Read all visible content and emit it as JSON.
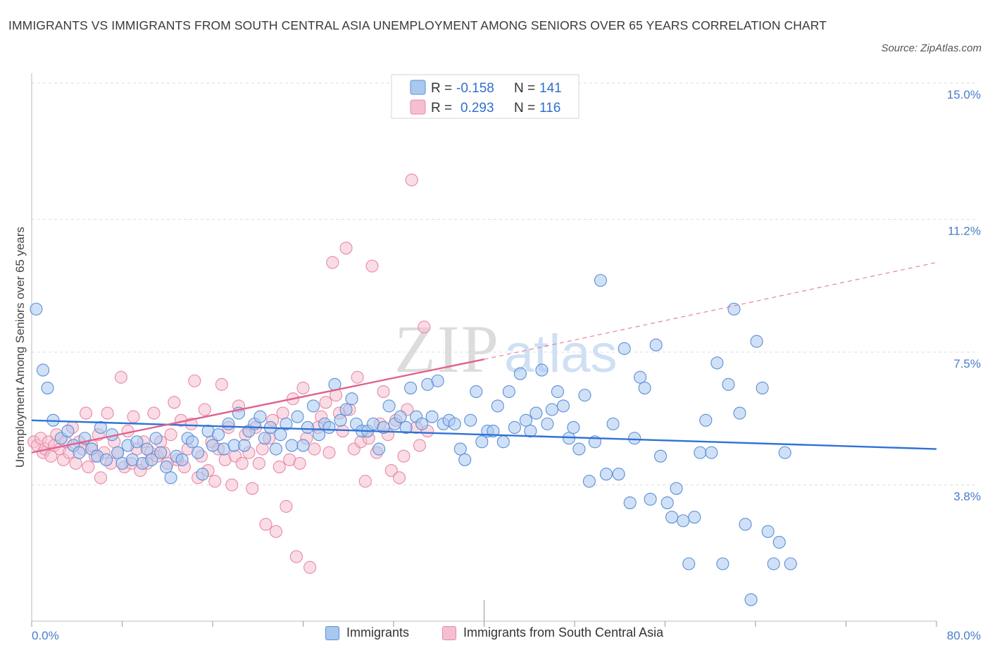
{
  "title": "IMMIGRANTS VS IMMIGRANTS FROM SOUTH CENTRAL ASIA UNEMPLOYMENT AMONG SENIORS OVER 65 YEARS CORRELATION CHART",
  "source": "Source: ZipAtlas.com",
  "watermark": {
    "zip": "ZIP",
    "atlas": "atlas"
  },
  "colors": {
    "blue_fill": "#a9c8f0",
    "blue_stroke": "#5b8fd6",
    "blue_line": "#2f72d4",
    "pink_fill": "#f6bfd0",
    "pink_stroke": "#e889a6",
    "pink_line": "#e0628e",
    "axis_text": "#4a7cc9",
    "grid": "#dddddd"
  },
  "legend": {
    "r_label": "R =",
    "n_label": "N =",
    "rows": [
      {
        "r": "-0.158",
        "n": "141"
      },
      {
        "r": "0.293",
        "n": "116"
      }
    ]
  },
  "bottom_legend": [
    "Immigrants",
    "Immigrants from South Central Asia"
  ],
  "chart_data": {
    "type": "scatter",
    "ylabel": "Unemployment Among Seniors over 65 years",
    "xlim": [
      0,
      80
    ],
    "ylim": [
      0,
      15
    ],
    "x_tick_labels": {
      "min": "0.0%",
      "max": "80.0%"
    },
    "y_ticks": [
      3.8,
      7.5,
      11.2,
      15.0
    ],
    "y_tick_labels": [
      "3.8%",
      "7.5%",
      "11.2%",
      "15.0%"
    ],
    "grid": true,
    "series": [
      {
        "name": "Immigrants",
        "color": "blue",
        "trend": {
          "x": [
            0,
            80
          ],
          "y": [
            5.6,
            4.8
          ],
          "style": "solid"
        },
        "points": [
          [
            0.4,
            8.7
          ],
          [
            1.0,
            7.0
          ],
          [
            1.4,
            6.5
          ],
          [
            1.9,
            5.6
          ],
          [
            2.6,
            5.1
          ],
          [
            3.2,
            5.3
          ],
          [
            3.7,
            4.9
          ],
          [
            4.2,
            4.7
          ],
          [
            4.7,
            5.1
          ],
          [
            5.3,
            4.8
          ],
          [
            5.8,
            4.6
          ],
          [
            6.1,
            5.4
          ],
          [
            6.6,
            4.5
          ],
          [
            7.1,
            5.2
          ],
          [
            7.6,
            4.7
          ],
          [
            8.0,
            4.4
          ],
          [
            8.5,
            4.9
          ],
          [
            8.9,
            4.5
          ],
          [
            9.3,
            5.0
          ],
          [
            9.8,
            4.4
          ],
          [
            10.2,
            4.8
          ],
          [
            10.6,
            4.5
          ],
          [
            11.0,
            5.1
          ],
          [
            11.4,
            4.7
          ],
          [
            11.9,
            4.3
          ],
          [
            12.3,
            4.0
          ],
          [
            12.8,
            4.6
          ],
          [
            13.3,
            4.5
          ],
          [
            13.8,
            5.1
          ],
          [
            14.2,
            5.0
          ],
          [
            14.7,
            4.7
          ],
          [
            15.1,
            4.1
          ],
          [
            15.6,
            5.3
          ],
          [
            16.0,
            4.9
          ],
          [
            16.5,
            5.2
          ],
          [
            17.0,
            4.8
          ],
          [
            17.4,
            5.5
          ],
          [
            17.9,
            4.9
          ],
          [
            18.3,
            5.8
          ],
          [
            18.8,
            4.9
          ],
          [
            19.2,
            5.3
          ],
          [
            19.7,
            5.5
          ],
          [
            20.2,
            5.7
          ],
          [
            20.6,
            5.1
          ],
          [
            21.1,
            5.4
          ],
          [
            21.6,
            4.8
          ],
          [
            22.0,
            5.2
          ],
          [
            22.5,
            5.5
          ],
          [
            23.0,
            4.9
          ],
          [
            23.5,
            5.7
          ],
          [
            24.0,
            4.9
          ],
          [
            24.4,
            5.4
          ],
          [
            24.9,
            6.0
          ],
          [
            25.4,
            5.2
          ],
          [
            25.9,
            5.5
          ],
          [
            26.3,
            5.4
          ],
          [
            26.8,
            6.6
          ],
          [
            27.3,
            5.6
          ],
          [
            27.8,
            5.9
          ],
          [
            28.3,
            6.2
          ],
          [
            28.7,
            5.5
          ],
          [
            29.2,
            5.3
          ],
          [
            29.7,
            5.3
          ],
          [
            30.2,
            5.5
          ],
          [
            30.7,
            4.8
          ],
          [
            31.1,
            5.4
          ],
          [
            31.6,
            6.0
          ],
          [
            32.1,
            5.5
          ],
          [
            32.6,
            5.7
          ],
          [
            33.1,
            5.4
          ],
          [
            33.5,
            6.5
          ],
          [
            34.0,
            5.7
          ],
          [
            34.5,
            5.5
          ],
          [
            35.0,
            6.6
          ],
          [
            35.4,
            5.7
          ],
          [
            35.9,
            6.7
          ],
          [
            36.4,
            5.5
          ],
          [
            36.9,
            5.6
          ],
          [
            37.4,
            5.5
          ],
          [
            37.9,
            4.8
          ],
          [
            38.3,
            4.5
          ],
          [
            38.8,
            5.6
          ],
          [
            39.3,
            6.4
          ],
          [
            39.8,
            5.0
          ],
          [
            40.3,
            5.3
          ],
          [
            40.8,
            5.3
          ],
          [
            41.2,
            6.0
          ],
          [
            41.7,
            5.0
          ],
          [
            42.2,
            6.4
          ],
          [
            42.7,
            5.4
          ],
          [
            43.2,
            6.9
          ],
          [
            43.7,
            5.6
          ],
          [
            44.1,
            5.3
          ],
          [
            44.6,
            5.8
          ],
          [
            45.1,
            7.0
          ],
          [
            45.6,
            5.5
          ],
          [
            46.0,
            5.9
          ],
          [
            46.5,
            6.4
          ],
          [
            47.0,
            6.0
          ],
          [
            47.5,
            5.1
          ],
          [
            47.9,
            5.4
          ],
          [
            48.4,
            4.8
          ],
          [
            48.9,
            6.3
          ],
          [
            49.3,
            3.9
          ],
          [
            49.8,
            5.0
          ],
          [
            50.3,
            9.5
          ],
          [
            50.8,
            4.1
          ],
          [
            51.4,
            5.5
          ],
          [
            51.9,
            4.1
          ],
          [
            52.4,
            7.6
          ],
          [
            52.9,
            3.3
          ],
          [
            53.3,
            5.1
          ],
          [
            53.8,
            6.8
          ],
          [
            54.2,
            6.5
          ],
          [
            54.7,
            3.4
          ],
          [
            55.2,
            7.7
          ],
          [
            55.6,
            4.6
          ],
          [
            56.2,
            3.3
          ],
          [
            56.6,
            2.9
          ],
          [
            57.0,
            3.7
          ],
          [
            57.6,
            2.8
          ],
          [
            58.1,
            1.6
          ],
          [
            58.6,
            2.9
          ],
          [
            59.1,
            4.7
          ],
          [
            59.6,
            5.6
          ],
          [
            60.1,
            4.7
          ],
          [
            60.6,
            7.2
          ],
          [
            61.1,
            1.6
          ],
          [
            61.6,
            6.6
          ],
          [
            62.1,
            8.7
          ],
          [
            62.6,
            5.8
          ],
          [
            63.1,
            2.7
          ],
          [
            63.6,
            0.6
          ],
          [
            64.1,
            7.8
          ],
          [
            64.6,
            6.5
          ],
          [
            65.1,
            2.5
          ],
          [
            65.6,
            1.6
          ],
          [
            66.1,
            2.2
          ],
          [
            66.6,
            4.7
          ],
          [
            67.1,
            1.6
          ]
        ]
      },
      {
        "name": "Immigrants from South Central Asia",
        "color": "pink",
        "trend": {
          "x": [
            0,
            40
          ],
          "y": [
            4.7,
            7.3
          ],
          "style": "solid",
          "extended": {
            "x": [
              40,
              80
            ],
            "y": [
              7.3,
              10.0
            ],
            "style": "dashed"
          }
        },
        "points": [
          [
            0.2,
            5.0
          ],
          [
            0.5,
            4.9
          ],
          [
            0.8,
            5.1
          ],
          [
            1.0,
            4.7
          ],
          [
            1.2,
            4.8
          ],
          [
            1.5,
            5.0
          ],
          [
            1.7,
            4.6
          ],
          [
            2.0,
            4.9
          ],
          [
            2.2,
            5.2
          ],
          [
            2.5,
            4.8
          ],
          [
            2.8,
            4.5
          ],
          [
            3.0,
            5.0
          ],
          [
            3.3,
            4.7
          ],
          [
            3.6,
            5.4
          ],
          [
            3.9,
            4.4
          ],
          [
            4.2,
            5.0
          ],
          [
            4.5,
            4.8
          ],
          [
            4.8,
            5.8
          ],
          [
            5.0,
            4.3
          ],
          [
            5.3,
            4.9
          ],
          [
            5.6,
            4.6
          ],
          [
            5.9,
            5.2
          ],
          [
            6.1,
            4.0
          ],
          [
            6.4,
            4.7
          ],
          [
            6.7,
            5.8
          ],
          [
            7.0,
            4.4
          ],
          [
            7.3,
            5.0
          ],
          [
            7.6,
            4.7
          ],
          [
            7.9,
            6.8
          ],
          [
            8.2,
            4.3
          ],
          [
            8.5,
            5.3
          ],
          [
            8.8,
            4.4
          ],
          [
            9.0,
            5.7
          ],
          [
            9.3,
            4.8
          ],
          [
            9.6,
            4.2
          ],
          [
            9.9,
            5.0
          ],
          [
            10.2,
            4.4
          ],
          [
            10.5,
            4.7
          ],
          [
            10.8,
            5.8
          ],
          [
            11.1,
            4.6
          ],
          [
            11.4,
            5.0
          ],
          [
            11.7,
            4.7
          ],
          [
            12.0,
            4.4
          ],
          [
            12.3,
            5.2
          ],
          [
            12.6,
            6.1
          ],
          [
            12.9,
            4.5
          ],
          [
            13.2,
            5.6
          ],
          [
            13.5,
            4.3
          ],
          [
            13.8,
            4.8
          ],
          [
            14.1,
            5.5
          ],
          [
            14.4,
            6.7
          ],
          [
            14.7,
            4.0
          ],
          [
            15.0,
            4.6
          ],
          [
            15.3,
            5.9
          ],
          [
            15.6,
            4.2
          ],
          [
            15.9,
            5.0
          ],
          [
            16.2,
            3.9
          ],
          [
            16.5,
            4.8
          ],
          [
            16.8,
            6.6
          ],
          [
            17.1,
            4.5
          ],
          [
            17.4,
            5.4
          ],
          [
            17.7,
            3.8
          ],
          [
            18.0,
            4.6
          ],
          [
            18.3,
            6.0
          ],
          [
            18.6,
            4.4
          ],
          [
            18.9,
            5.2
          ],
          [
            19.2,
            4.7
          ],
          [
            19.5,
            3.7
          ],
          [
            19.8,
            5.4
          ],
          [
            20.1,
            4.4
          ],
          [
            20.4,
            4.8
          ],
          [
            20.7,
            2.7
          ],
          [
            21.0,
            5.1
          ],
          [
            21.3,
            5.6
          ],
          [
            21.6,
            2.5
          ],
          [
            21.9,
            4.3
          ],
          [
            22.2,
            5.8
          ],
          [
            22.5,
            3.2
          ],
          [
            22.8,
            4.5
          ],
          [
            23.1,
            6.2
          ],
          [
            23.4,
            1.8
          ],
          [
            23.7,
            4.4
          ],
          [
            24.0,
            6.5
          ],
          [
            24.3,
            5.1
          ],
          [
            24.6,
            1.5
          ],
          [
            25.0,
            4.8
          ],
          [
            25.3,
            5.4
          ],
          [
            25.6,
            5.7
          ],
          [
            26.0,
            6.1
          ],
          [
            26.3,
            4.7
          ],
          [
            26.6,
            10.0
          ],
          [
            26.9,
            6.3
          ],
          [
            27.2,
            5.8
          ],
          [
            27.5,
            5.3
          ],
          [
            27.8,
            10.4
          ],
          [
            28.1,
            5.9
          ],
          [
            28.5,
            4.8
          ],
          [
            28.8,
            6.8
          ],
          [
            29.1,
            5.0
          ],
          [
            29.5,
            3.9
          ],
          [
            29.8,
            5.1
          ],
          [
            30.1,
            9.9
          ],
          [
            30.5,
            4.7
          ],
          [
            30.8,
            5.5
          ],
          [
            31.1,
            6.4
          ],
          [
            31.5,
            5.2
          ],
          [
            31.8,
            4.2
          ],
          [
            32.2,
            5.6
          ],
          [
            32.5,
            4.0
          ],
          [
            32.9,
            4.6
          ],
          [
            33.2,
            5.9
          ],
          [
            33.6,
            12.3
          ],
          [
            34.0,
            5.4
          ],
          [
            34.3,
            4.9
          ],
          [
            34.7,
            8.2
          ],
          [
            35.0,
            5.3
          ]
        ]
      }
    ]
  }
}
